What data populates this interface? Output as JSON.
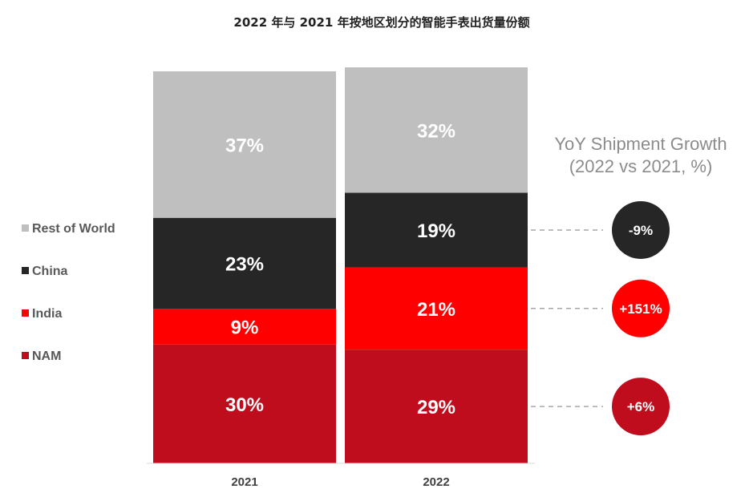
{
  "chart_data": {
    "type": "bar",
    "stacked": true,
    "title": "2022 年与 2021 年按地区划分的智能手表出货量份额",
    "categories": [
      "2021",
      "2022"
    ],
    "ylim": [
      0,
      100
    ],
    "grid": false,
    "legend_position": "left",
    "series": [
      {
        "name": "NAM",
        "color": "#c00d1e",
        "values": [
          30,
          29
        ],
        "labels": [
          "30%",
          "29%"
        ]
      },
      {
        "name": "India",
        "color": "#ff0000",
        "values": [
          9,
          21
        ],
        "labels": [
          "9%",
          "21%"
        ]
      },
      {
        "name": "China",
        "color": "#262626",
        "values": [
          23,
          19
        ],
        "labels": [
          "23%",
          "19%"
        ]
      },
      {
        "name": "Rest of World",
        "color": "#bfbfbf",
        "values": [
          37,
          32
        ],
        "labels": [
          "37%",
          "32%"
        ]
      }
    ],
    "legend": [
      "Rest of World",
      "China",
      "India",
      "NAM"
    ],
    "yoy_title": [
      "YoY Shipment Growth",
      "(2022 vs 2021, %)"
    ],
    "yoy_growth": [
      {
        "series": "China",
        "label": "-9%",
        "color": "#262626"
      },
      {
        "series": "India",
        "label": "+151%",
        "color": "#ff0000"
      },
      {
        "series": "NAM",
        "label": "+6%",
        "color": "#c00d1e"
      }
    ]
  }
}
